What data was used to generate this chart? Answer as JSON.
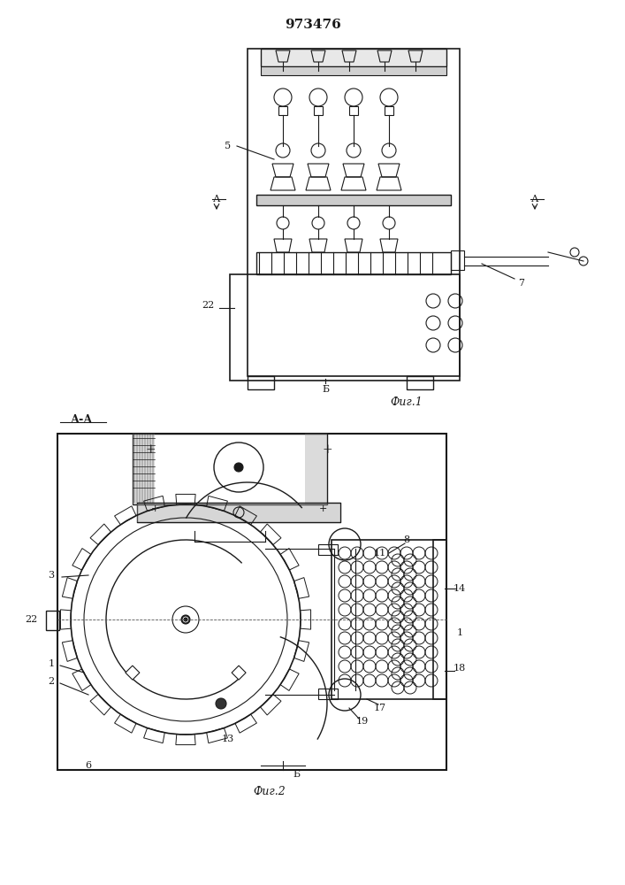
{
  "title": "973476",
  "bg_color": "#ffffff",
  "line_color": "#1a1a1a",
  "fig1_label": "Фиг.1",
  "fig2_label": "Фиг.2",
  "section_label": "А-А",
  "title_fontsize": 11,
  "label_fontsize": 8,
  "annotation_fontsize": 8
}
